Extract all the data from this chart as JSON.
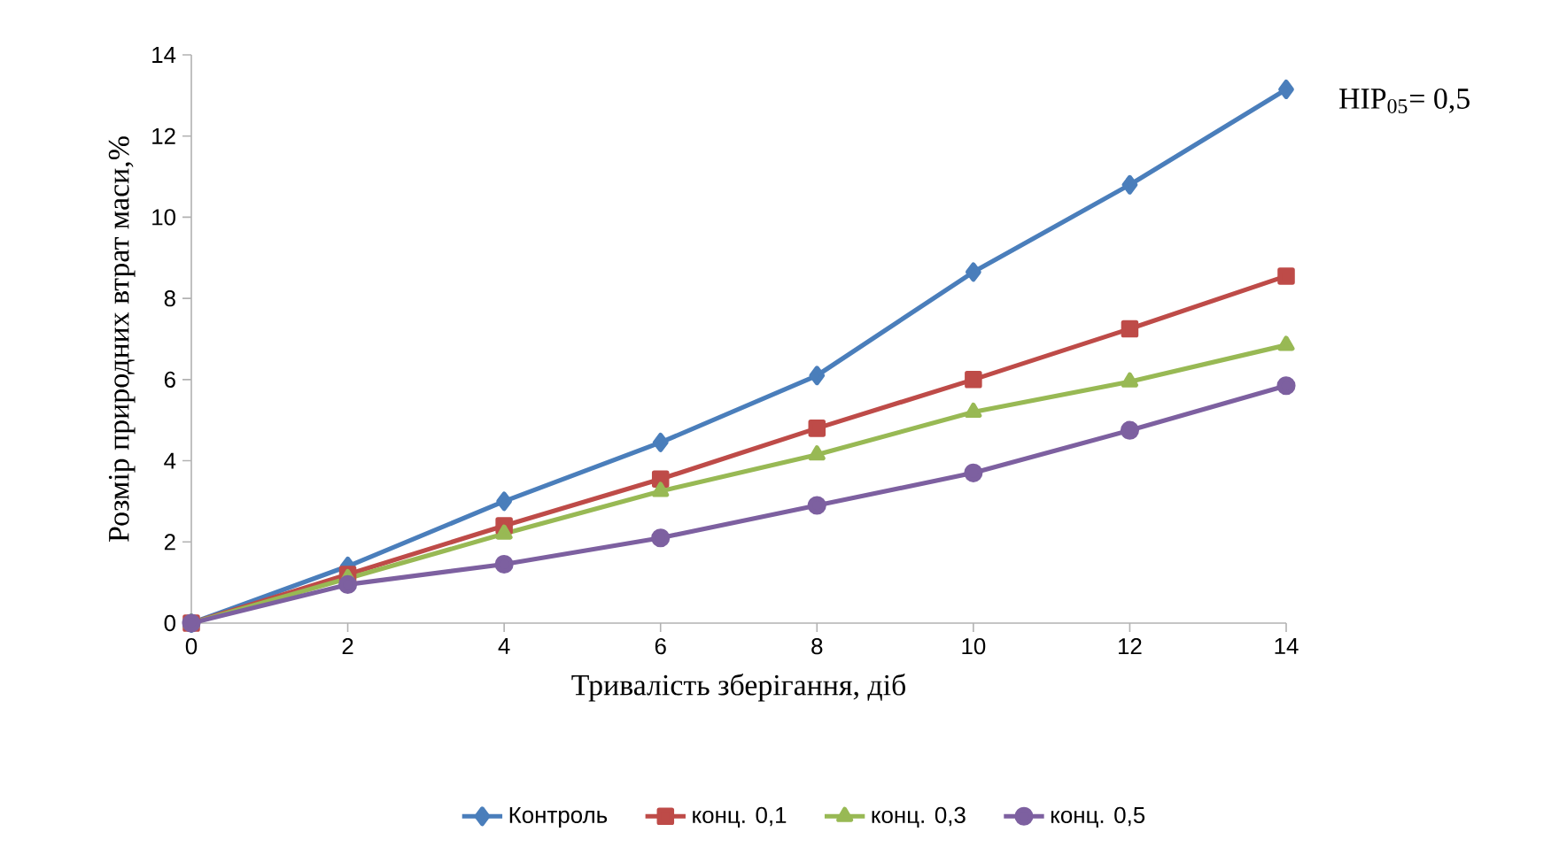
{
  "chart_data": {
    "type": "line",
    "xlabel": "Тривалість зберігання, діб",
    "ylabel": "Розмір природних втрат маси,%",
    "annotations": [
      "НІР$_{05}$= 0,5"
    ],
    "x": [
      0,
      2,
      4,
      6,
      8,
      10,
      12,
      14
    ],
    "xlim": [
      0,
      14
    ],
    "xticks": [
      0,
      2,
      4,
      6,
      8,
      10,
      12,
      14
    ],
    "ylim": [
      0,
      14
    ],
    "yticks": [
      0,
      2,
      4,
      6,
      8,
      10,
      12,
      14
    ],
    "grid": false,
    "legend": "bottom",
    "line_style": "solid",
    "series": [
      {
        "name": "Контроль",
        "color": "#4a7ebb",
        "marker": "diamond",
        "values": [
          0,
          1.4,
          3.0,
          4.45,
          6.1,
          8.65,
          10.8,
          13.15
        ]
      },
      {
        "name": "конц. 0,1",
        "color": "#be4b48",
        "marker": "square",
        "values": [
          0,
          1.2,
          2.4,
          3.55,
          4.8,
          6.0,
          7.25,
          8.55
        ]
      },
      {
        "name": "конц. 0,3",
        "color": "#98b954",
        "marker": "triangle",
        "values": [
          0,
          1.1,
          2.2,
          3.25,
          4.15,
          5.2,
          5.95,
          6.85
        ]
      },
      {
        "name": "конц. 0,5",
        "color": "#7d60a0",
        "marker": "circle",
        "values": [
          0,
          0.95,
          1.45,
          2.1,
          2.9,
          3.7,
          4.75,
          5.85
        ]
      }
    ]
  }
}
